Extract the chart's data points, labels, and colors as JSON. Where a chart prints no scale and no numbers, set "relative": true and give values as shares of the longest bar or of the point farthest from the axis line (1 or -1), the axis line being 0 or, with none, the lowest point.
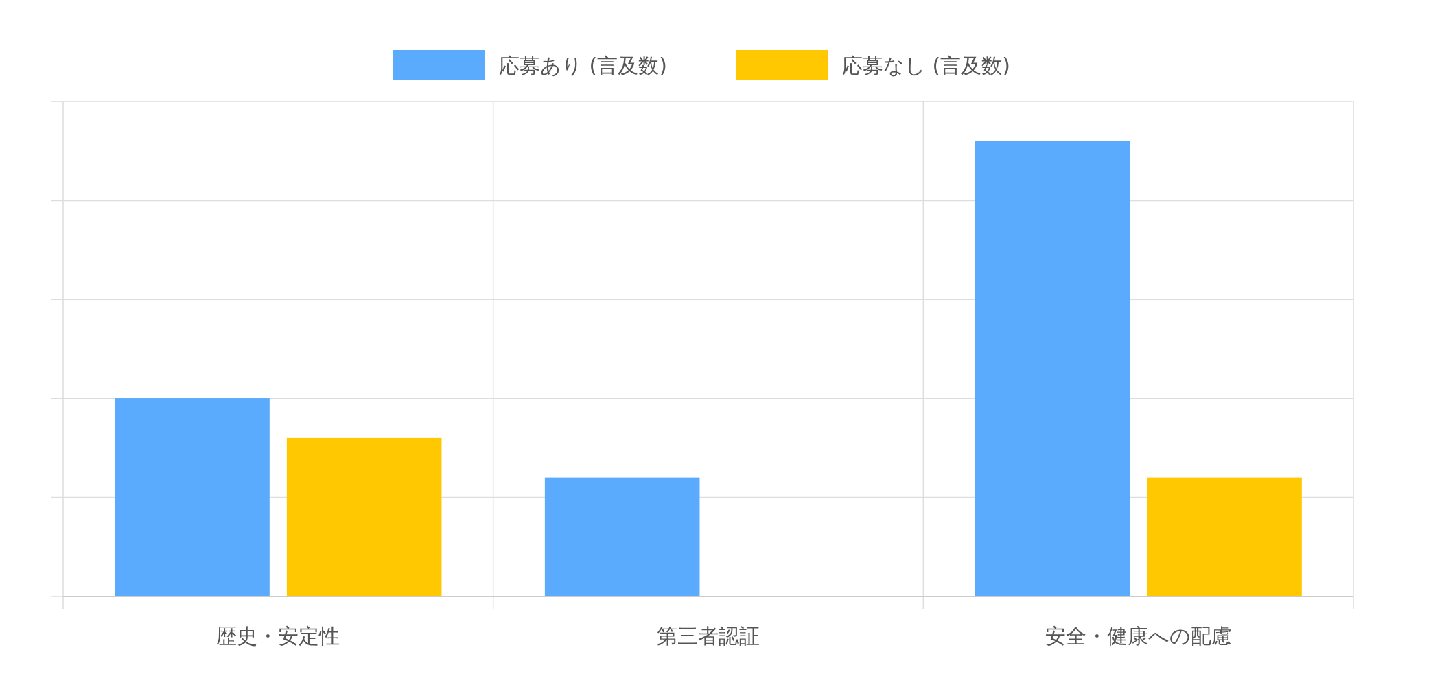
{
  "chart_data": {
    "type": "bar",
    "relative": true,
    "categories": [
      "歴史・安定性",
      "第三者認証",
      "安全・健康への配慮"
    ],
    "series": [
      {
        "name": "応募あり (言及数)",
        "color": "#5aabfd",
        "values": [
          0.435,
          0.261,
          1
        ]
      },
      {
        "name": "応募なし (言及数)",
        "color": "#ffc800",
        "values": [
          0.348,
          0,
          0.261
        ]
      }
    ],
    "grid": true,
    "legend": "top"
  }
}
